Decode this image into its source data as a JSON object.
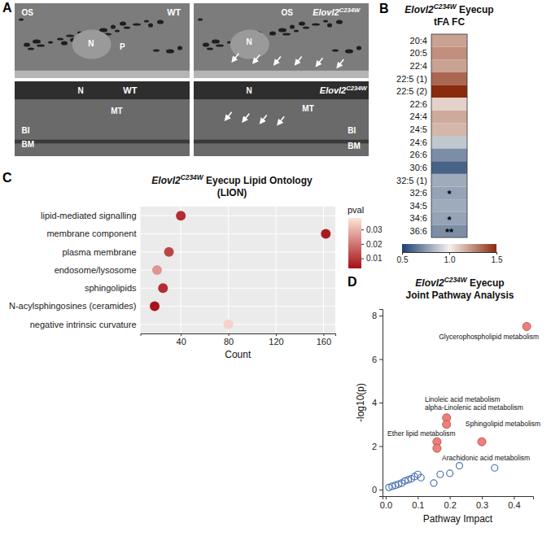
{
  "panel_a": {
    "label": "A",
    "images": [
      {
        "genotype": [
          "WT"
        ],
        "labels": [
          "OS",
          "N",
          "P"
        ]
      },
      {
        "genotype": [
          "Elovl2",
          "C234W"
        ],
        "labels": [
          "OS",
          "N"
        ]
      },
      {
        "genotype": [
          "WT"
        ],
        "labels": [
          "N",
          "MT",
          "BI",
          "BM"
        ]
      },
      {
        "genotype": [
          "Elovl2",
          "C234W"
        ],
        "labels": [
          "N",
          "MT",
          "BI",
          "BM"
        ]
      }
    ]
  },
  "chart_data": [
    {
      "type": "heatmap",
      "panel": "B",
      "title": [
        [
          "Elovl2",
          "C234W",
          " Eyecup"
        ],
        [
          "tFA FC"
        ]
      ],
      "categories": [
        "20:4",
        "20:5",
        "22:4",
        "22:5 (1)",
        "22:5 (2)",
        "22:6",
        "24:4",
        "24:5",
        "24:6",
        "26:6",
        "30:6",
        "32:5 (1)",
        "32:6",
        "34:5",
        "34:6",
        "36:6"
      ],
      "values": [
        1.2,
        1.25,
        1.2,
        1.35,
        1.5,
        1.08,
        1.18,
        1.15,
        0.88,
        0.72,
        0.6,
        0.8,
        0.78,
        0.8,
        0.78,
        0.72
      ],
      "stars": [
        null,
        null,
        null,
        null,
        null,
        null,
        null,
        null,
        null,
        null,
        null,
        null,
        "*",
        null,
        "*",
        "**"
      ],
      "colorbar": {
        "range": [
          0.5,
          1.5
        ],
        "ticks": [
          0.5,
          {
            "value": 1,
            "label": "1.0"
          },
          1.5
        ],
        "colors": [
          "#1d3f6e",
          "#f5f2ee",
          "#8a2b0e"
        ]
      }
    },
    {
      "type": "dot",
      "panel": "C",
      "title": [
        [
          "Elovl2",
          "C234W",
          " Eyecup Lipid Ontology"
        ],
        [
          "(LION)"
        ]
      ],
      "categories": [
        "lipid-mediated signalling",
        "membrane component",
        "plasma membrane",
        "endosome/lysosome",
        "sphingolipids",
        "N-acylsphingosines (ceramides)",
        "negative intrinsic curvature"
      ],
      "values": [
        40,
        162,
        30,
        20,
        25,
        18,
        80
      ],
      "pvalues": [
        0.008,
        0.005,
        0.012,
        0.025,
        0.008,
        0.004,
        0.035
      ],
      "xlabel": "Count",
      "xlim": [
        6,
        170
      ],
      "xticks": [
        40,
        80,
        120,
        160
      ],
      "grid": true,
      "colorbar": {
        "title": "pval",
        "range": [
          0.003,
          0.038
        ],
        "ticks": [
          0.01,
          0.02,
          0.03
        ],
        "colors": [
          "#a50f15",
          "#fee5d9"
        ]
      }
    },
    {
      "type": "scatter",
      "panel": "D",
      "title": [
        [
          "Elovl2",
          "C234W",
          " Eyecup"
        ],
        [
          "Joint Pathway Analysis"
        ]
      ],
      "xlabel": "Pathway Impact",
      "ylabel": "-log10(p)",
      "xlim": [
        -0.01,
        0.46
      ],
      "ylim": [
        -0.3,
        8.3
      ],
      "xticks": [
        {
          "value": 0,
          "label": "0.0"
        },
        0.1,
        0.2,
        0.3,
        0.4
      ],
      "yticks": [
        0,
        2,
        4,
        6,
        8
      ],
      "series": [
        {
          "color": "#ef7f78",
          "marker": "filled",
          "x": [
            0.44,
            0.19,
            0.19,
            0.16,
            0.16,
            0.3
          ],
          "values": [
            7.5,
            3.3,
            3.0,
            2.2,
            1.9,
            2.2
          ],
          "labels": [
            "Glycerophospholipid metabolism",
            "Linoleic acid metabolism",
            "alpha-Linolenic acid metabolism",
            "Ether lipid metabolism",
            "Arachidonic acid metabolism",
            "Sphingolipid metabolism"
          ]
        },
        {
          "color": "#4a72b0",
          "marker": "open",
          "x": [
            0.01,
            0.02,
            0.03,
            0.04,
            0.05,
            0.06,
            0.07,
            0.08,
            0.09,
            0.1,
            0.11,
            0.15,
            0.17,
            0.2,
            0.23,
            0.34
          ],
          "values": [
            0.1,
            0.15,
            0.2,
            0.25,
            0.3,
            0.4,
            0.45,
            0.5,
            0.6,
            0.7,
            0.55,
            0.3,
            0.7,
            0.75,
            1.1,
            1.0
          ]
        }
      ]
    }
  ]
}
